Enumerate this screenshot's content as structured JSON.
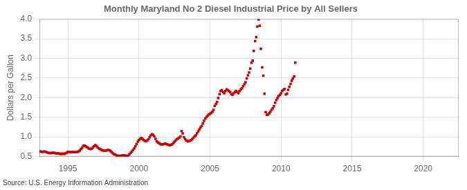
{
  "chart_data": {
    "type": "scatter",
    "title": "Monthly Maryland No 2 Diesel Industrial Price by All Sellers",
    "ylabel": "Dollars per Gallon",
    "annotations": [
      "Source: U.S. Energy Information Administration"
    ],
    "color": "#cc0000",
    "marker": "square",
    "grid": true,
    "xlim": [
      1993.0,
      2022.5
    ],
    "xticks": [
      1995,
      2000,
      2005,
      2010,
      2015,
      2020
    ],
    "ylim": [
      0.5,
      4.0
    ],
    "yticks": [
      0.5,
      {
        "value": 1.0,
        "label": "1.0"
      },
      1.5,
      {
        "value": 2.0,
        "label": "2.0"
      },
      2.5,
      {
        "value": 3.0,
        "label": "3.0"
      },
      3.5,
      {
        "value": 4.0,
        "label": "4.0"
      }
    ],
    "x": [
      1993.08,
      1993.17,
      1993.25,
      1993.33,
      1993.42,
      1993.5,
      1993.58,
      1993.67,
      1993.75,
      1993.83,
      1993.92,
      1994.0,
      1994.08,
      1994.17,
      1994.25,
      1994.33,
      1994.42,
      1994.5,
      1994.58,
      1994.67,
      1994.75,
      1994.83,
      1994.92,
      1995.0,
      1995.08,
      1995.17,
      1995.25,
      1995.33,
      1995.42,
      1995.5,
      1995.58,
      1995.67,
      1995.75,
      1995.83,
      1995.92,
      1996.0,
      1996.08,
      1996.17,
      1996.25,
      1996.33,
      1996.42,
      1996.5,
      1996.58,
      1996.67,
      1996.75,
      1996.83,
      1996.92,
      1997.0,
      1997.08,
      1997.17,
      1997.25,
      1997.33,
      1997.42,
      1997.5,
      1997.58,
      1997.67,
      1997.75,
      1997.83,
      1997.92,
      1998.0,
      1998.08,
      1998.17,
      1998.25,
      1998.33,
      1998.42,
      1998.5,
      1998.58,
      1998.67,
      1998.75,
      1998.83,
      1998.92,
      1999.0,
      1999.08,
      1999.17,
      1999.25,
      1999.33,
      1999.42,
      1999.5,
      1999.58,
      1999.67,
      1999.75,
      1999.83,
      1999.92,
      2000.0,
      2000.08,
      2000.17,
      2000.25,
      2000.33,
      2000.42,
      2000.5,
      2000.58,
      2000.67,
      2000.75,
      2000.83,
      2000.92,
      2001.0,
      2001.08,
      2001.17,
      2001.25,
      2001.33,
      2001.42,
      2001.5,
      2001.58,
      2001.67,
      2001.75,
      2001.83,
      2001.92,
      2002.0,
      2002.08,
      2002.17,
      2002.25,
      2002.33,
      2002.42,
      2002.5,
      2002.58,
      2002.67,
      2002.75,
      2002.83,
      2002.92,
      2003.0,
      2003.08,
      2003.17,
      2003.25,
      2003.33,
      2003.42,
      2003.5,
      2003.58,
      2003.67,
      2003.75,
      2003.83,
      2003.92,
      2004.0,
      2004.08,
      2004.17,
      2004.25,
      2004.33,
      2004.42,
      2004.5,
      2004.58,
      2004.67,
      2004.75,
      2004.83,
      2004.92,
      2005.0,
      2005.08,
      2005.17,
      2005.25,
      2005.33,
      2005.42,
      2005.5,
      2005.58,
      2005.67,
      2005.75,
      2005.83,
      2005.92,
      2006.0,
      2006.08,
      2006.17,
      2006.25,
      2006.33,
      2006.42,
      2006.5,
      2006.58,
      2006.67,
      2006.75,
      2006.83,
      2006.92,
      2007.0,
      2007.08,
      2007.17,
      2007.25,
      2007.33,
      2007.42,
      2007.5,
      2007.58,
      2007.67,
      2007.75,
      2007.83,
      2007.92,
      2008.0,
      2008.08,
      2008.17,
      2008.25,
      2008.33,
      2008.42,
      2008.5,
      2008.58,
      2008.67,
      2008.75,
      2008.83,
      2008.92,
      2009.0,
      2009.08,
      2009.17,
      2009.25,
      2009.33,
      2009.42,
      2009.5,
      2009.58,
      2009.67,
      2009.75,
      2009.83,
      2009.92,
      2010.0,
      2010.08,
      2010.17,
      2010.25,
      2010.33,
      2010.42,
      2010.5,
      2010.58,
      2010.67,
      2010.75,
      2010.83,
      2010.92,
      2011.0
    ],
    "values": [
      0.63,
      0.62,
      0.62,
      0.63,
      0.62,
      0.61,
      0.6,
      0.59,
      0.59,
      0.59,
      0.6,
      0.6,
      0.59,
      0.58,
      0.58,
      0.58,
      0.57,
      0.57,
      0.57,
      0.57,
      0.57,
      0.58,
      0.6,
      0.62,
      0.62,
      0.61,
      0.61,
      0.62,
      0.61,
      0.61,
      0.61,
      0.62,
      0.63,
      0.65,
      0.69,
      0.72,
      0.77,
      0.78,
      0.76,
      0.74,
      0.72,
      0.7,
      0.69,
      0.7,
      0.73,
      0.76,
      0.79,
      0.77,
      0.74,
      0.71,
      0.69,
      0.68,
      0.66,
      0.65,
      0.65,
      0.65,
      0.66,
      0.67,
      0.66,
      0.64,
      0.61,
      0.58,
      0.56,
      0.55,
      0.53,
      0.52,
      0.52,
      0.52,
      0.52,
      0.53,
      0.53,
      0.53,
      0.52,
      0.52,
      0.52,
      0.56,
      0.6,
      0.63,
      0.67,
      0.71,
      0.76,
      0.82,
      0.88,
      0.92,
      0.95,
      0.97,
      0.95,
      0.92,
      0.9,
      0.89,
      0.91,
      0.94,
      0.99,
      1.04,
      1.07,
      1.05,
      1.01,
      0.95,
      0.89,
      0.86,
      0.84,
      0.82,
      0.81,
      0.81,
      0.82,
      0.83,
      0.82,
      0.81,
      0.8,
      0.79,
      0.8,
      0.81,
      0.84,
      0.88,
      0.91,
      0.94,
      0.96,
      0.98,
      1.01,
      1.15,
      1.09,
      0.99,
      0.94,
      0.91,
      0.89,
      0.89,
      0.9,
      0.92,
      0.94,
      0.98,
      1.01,
      1.04,
      1.09,
      1.14,
      1.19,
      1.24,
      1.28,
      1.34,
      1.41,
      1.47,
      1.51,
      1.54,
      1.57,
      1.59,
      1.61,
      1.64,
      1.69,
      1.79,
      1.84,
      1.89,
      1.99,
      2.09,
      2.17,
      2.19,
      2.14,
      2.11,
      2.17,
      2.21,
      2.19,
      2.17,
      2.14,
      2.09,
      2.07,
      2.11,
      2.14,
      2.17,
      2.14,
      2.11,
      2.17,
      2.21,
      2.24,
      2.29,
      2.34,
      2.39,
      2.49,
      2.57,
      2.64,
      2.74,
      2.89,
      2.94,
      3.19,
      3.44,
      3.54,
      3.81,
      3.99,
      3.83,
      3.24,
      2.77,
      2.56,
      2.1,
      1.63,
      1.56,
      1.57,
      1.6,
      1.64,
      1.69,
      1.73,
      1.78,
      1.87,
      1.94,
      1.99,
      2.04,
      2.07,
      2.11,
      2.17,
      2.2,
      2.22,
      2.08,
      2.1,
      2.2,
      2.28,
      2.35,
      2.43,
      2.49,
      2.54,
      2.89
    ]
  }
}
